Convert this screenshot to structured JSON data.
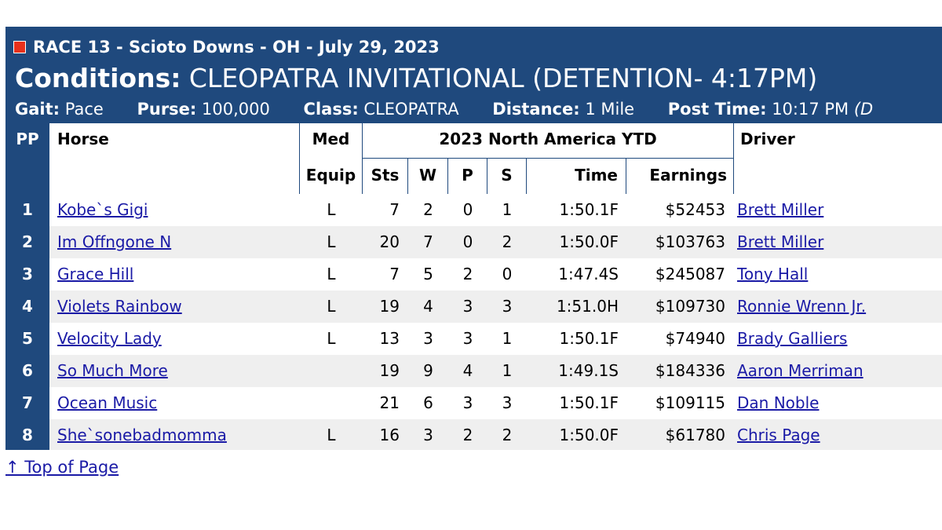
{
  "race": {
    "title": "RACE 13 - Scioto Downs - OH - July 29, 2023",
    "conditions_label": "Conditions:",
    "conditions_value": "CLEOPATRA INVITATIONAL (DETENTION- 4:17PM)",
    "gait_label": "Gait:",
    "gait_value": "Pace",
    "purse_label": "Purse:",
    "purse_value": "100,000",
    "class_label": "Class:",
    "class_value": "CLEOPATRA",
    "distance_label": "Distance:",
    "distance_value": "1 Mile",
    "post_label": "Post Time:",
    "post_value": "10:17 PM",
    "post_extra": "(D"
  },
  "columns": {
    "pp": "PP",
    "horse": "Horse",
    "med": "Med",
    "equip": "Equip",
    "group": "2023 North America YTD",
    "sts": "Sts",
    "w": "W",
    "p": "P",
    "s": "S",
    "time": "Time",
    "earnings": "Earnings",
    "driver": "Driver"
  },
  "entries": [
    {
      "pp": "1",
      "horse": "Kobe`s Gigi",
      "med": "L",
      "sts": "7",
      "w": "2",
      "p": "0",
      "s": "1",
      "time": "1:50.1F",
      "earnings": "$52453",
      "driver": "Brett Miller"
    },
    {
      "pp": "2",
      "horse": "Im Offngone N",
      "med": "L",
      "sts": "20",
      "w": "7",
      "p": "0",
      "s": "2",
      "time": "1:50.0F",
      "earnings": "$103763",
      "driver": "Brett Miller"
    },
    {
      "pp": "3",
      "horse": "Grace Hill",
      "med": "L",
      "sts": "7",
      "w": "5",
      "p": "2",
      "s": "0",
      "time": "1:47.4S",
      "earnings": "$245087",
      "driver": "Tony Hall"
    },
    {
      "pp": "4",
      "horse": "Violets Rainbow",
      "med": "L",
      "sts": "19",
      "w": "4",
      "p": "3",
      "s": "3",
      "time": "1:51.0H",
      "earnings": "$109730",
      "driver": "Ronnie Wrenn Jr."
    },
    {
      "pp": "5",
      "horse": "Velocity Lady",
      "med": "L",
      "sts": "13",
      "w": "3",
      "p": "3",
      "s": "1",
      "time": "1:50.1F",
      "earnings": "$74940",
      "driver": "Brady Galliers"
    },
    {
      "pp": "6",
      "horse": "So Much More",
      "med": "",
      "sts": "19",
      "w": "9",
      "p": "4",
      "s": "1",
      "time": "1:49.1S",
      "earnings": "$184336",
      "driver": "Aaron Merriman"
    },
    {
      "pp": "7",
      "horse": "Ocean Music",
      "med": "",
      "sts": "21",
      "w": "6",
      "p": "3",
      "s": "3",
      "time": "1:50.1F",
      "earnings": "$109115",
      "driver": "Dan Noble"
    },
    {
      "pp": "8",
      "horse": "She`sonebadmomma",
      "med": "L",
      "sts": "16",
      "w": "3",
      "p": "2",
      "s": "2",
      "time": "1:50.0F",
      "earnings": "$61780",
      "driver": "Chris Page"
    }
  ],
  "footer": {
    "top_link": "↑ Top of Page"
  },
  "colors": {
    "header_bg": "#1f497d",
    "row_shade": "#efefef",
    "link": "#1a1aa6",
    "icon_red": "#e8301c"
  }
}
